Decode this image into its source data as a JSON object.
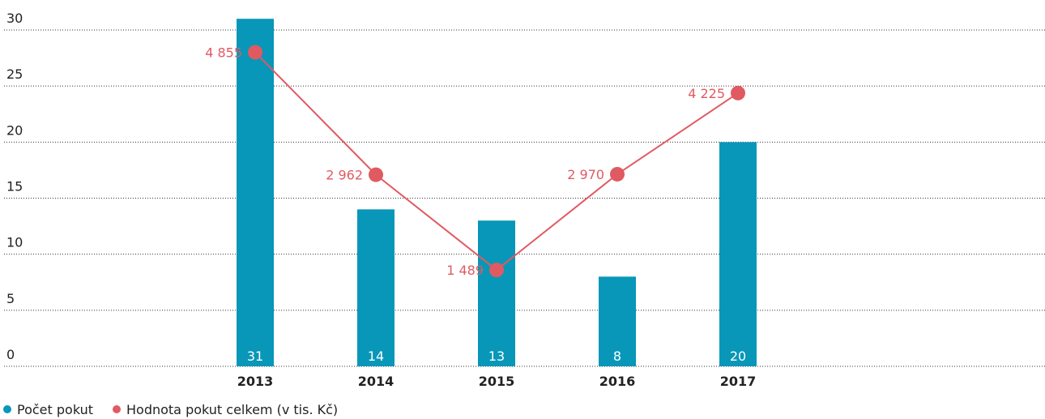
{
  "chart_data": {
    "type": "bar-line",
    "categories": [
      "2013",
      "2014",
      "2015",
      "2016",
      "2017"
    ],
    "series": [
      {
        "name": "Počet pokut",
        "type": "bar",
        "color": "#0897b8",
        "values": [
          31,
          14,
          13,
          8,
          20
        ]
      },
      {
        "name": "Hodnota pokut celkem (v tis. Kč)",
        "type": "line",
        "axis": "y2",
        "color": "#e05a62",
        "values": [
          4855,
          2962,
          1489,
          2970,
          4225
        ],
        "value_labels": [
          "4 855",
          "2 962",
          "1 489",
          "2 970",
          "4 225"
        ]
      }
    ],
    "ylim": [
      0,
      30
    ],
    "yticks": [
      0,
      5,
      10,
      15,
      20,
      25,
      30
    ],
    "y2lim": [
      0,
      5200
    ],
    "grid": true,
    "legend": "bottom-left"
  }
}
